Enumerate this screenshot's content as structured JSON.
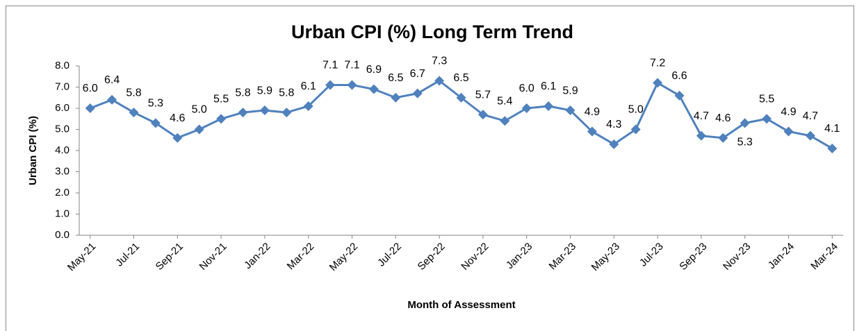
{
  "chart_data": {
    "type": "line",
    "title": "Urban CPI (%) Long Term Trend",
    "x_label": "Month of Assessment",
    "y_label": "Urban CPI (%)",
    "categories": [
      "May-21",
      null,
      "Jul-21",
      null,
      "Sep-21",
      null,
      "Nov-21",
      null,
      "Jan-22",
      null,
      "Mar-22",
      null,
      "May-22",
      null,
      "Jul-22",
      null,
      "Sep-22",
      null,
      "Nov-22",
      null,
      "Jan-23",
      null,
      "Mar-23",
      null,
      "May-23",
      null,
      "Jul-23",
      null,
      "Sep-23",
      null,
      "Nov-23",
      null,
      "Jan-24",
      null,
      "Mar-24"
    ],
    "series": [
      {
        "name": "Urban CPI (%)",
        "color": "#4f81bd",
        "values": [
          6.0,
          6.4,
          5.8,
          5.3,
          4.6,
          5.0,
          5.5,
          5.8,
          5.9,
          5.8,
          6.1,
          7.1,
          7.1,
          6.9,
          6.5,
          6.7,
          7.3,
          6.5,
          5.7,
          5.4,
          6.0,
          6.1,
          5.9,
          4.9,
          4.3,
          5.0,
          7.2,
          6.6,
          4.7,
          4.6,
          5.3,
          5.5,
          4.9,
          4.7,
          4.1
        ],
        "value_labels": [
          "6.0",
          "6.4",
          "5.8",
          "5.3",
          "4.6",
          "5.0",
          "5.5",
          "5.8",
          "5.9",
          "5.8",
          "6.1",
          "7.1",
          "7.1",
          "6.9",
          "6.5",
          "6.7",
          "7.3",
          "6.5",
          "5.7",
          "5.4",
          "6.0",
          "6.1",
          "5.9",
          "4.9",
          "4.3",
          "5.0",
          "7.2",
          "6.6",
          "4.7",
          "4.6",
          "5.3",
          "5.5",
          "4.9",
          "4.7",
          "4.1"
        ]
      }
    ],
    "ylim": [
      0,
      8
    ],
    "yticks": [
      {
        "value": 0,
        "label": "0.0"
      },
      {
        "value": 1,
        "label": "1.0"
      },
      {
        "value": 2,
        "label": "2.0"
      },
      {
        "value": 3,
        "label": "3.0"
      },
      {
        "value": 4,
        "label": "4.0"
      },
      {
        "value": 5,
        "label": "5.0"
      },
      {
        "value": 6,
        "label": "6.0"
      },
      {
        "value": 7,
        "label": "7.0"
      },
      {
        "value": 8,
        "label": "8.0"
      }
    ],
    "grid": false
  }
}
